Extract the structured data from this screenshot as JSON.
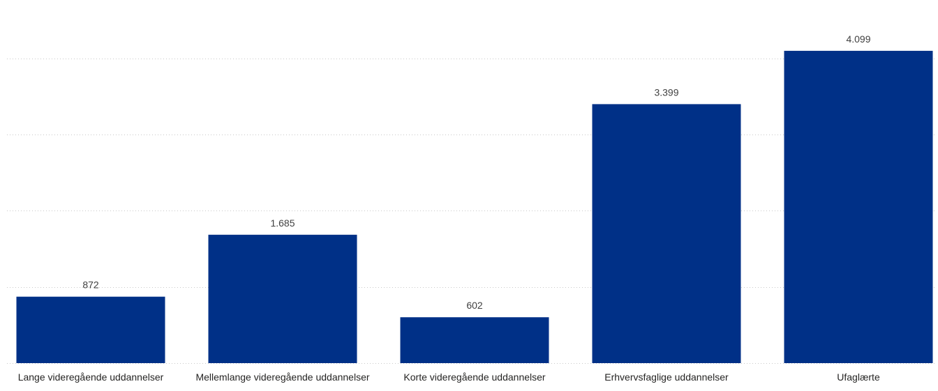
{
  "chart_data": {
    "type": "bar",
    "categories": [
      "Lange videregående uddannelser",
      "Mellemlange videregående uddannelser",
      "Korte videregående uddannelser",
      "Erhvervsfaglige uddannelser",
      "Ufaglærte"
    ],
    "values": [
      872,
      1685,
      602,
      3399,
      4099
    ],
    "data_labels": [
      "872",
      "1.685",
      "602",
      "3.399",
      "4.099"
    ],
    "title": "",
    "xlabel": "",
    "ylabel": "",
    "ylim": [
      0,
      4400
    ],
    "gridlines": [
      0,
      1000,
      2000,
      3000,
      4000
    ],
    "grid": true,
    "legend": "none",
    "bar_color": "#003087"
  }
}
